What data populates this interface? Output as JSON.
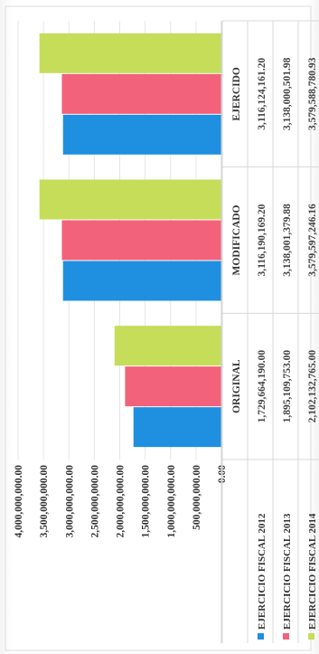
{
  "chart_data": {
    "type": "bar",
    "title": "",
    "categories": [
      "ORIGINAL",
      "MODIFICADO",
      "EJERCIDO"
    ],
    "series": [
      {
        "name": "EJERCICIO FISCAL 2012",
        "color": "#1f8fe0",
        "values": [
          1729664190.0,
          3116190169.2,
          3116124161.2
        ],
        "value_labels": [
          "1,729,664,190.00",
          "3,116,190,169.20",
          "3,116,124,161.20"
        ]
      },
      {
        "name": "EJERCICIO FISCAL 2013",
        "color": "#f2627a",
        "values": [
          1895109753.0,
          3138001379.88,
          3138000501.98
        ],
        "value_labels": [
          "1,895,109,753.00",
          "3,138,001,379.88",
          "3,138,000,501.98"
        ]
      },
      {
        "name": "EJERCICIO FISCAL 2014",
        "color": "#c6dd5a",
        "values": [
          2102132765.0,
          3579597246.16,
          3579588780.93
        ],
        "value_labels": [
          "2,102,132,765.00",
          "3,579,597,246.16",
          "3,579,588,780.93"
        ]
      }
    ],
    "y_ticks": [
      "0.00",
      "500,000,000.00",
      "1,000,000,000.00",
      "1,500,000,000.00",
      "2,000,000,000.00",
      "2,500,000,000.00",
      "3,000,000,000.00",
      "3,500,000,000.00",
      "4,000,000,000.00"
    ],
    "ylim": [
      0,
      4000000000
    ],
    "grid": true,
    "legend": "data-table-left"
  }
}
